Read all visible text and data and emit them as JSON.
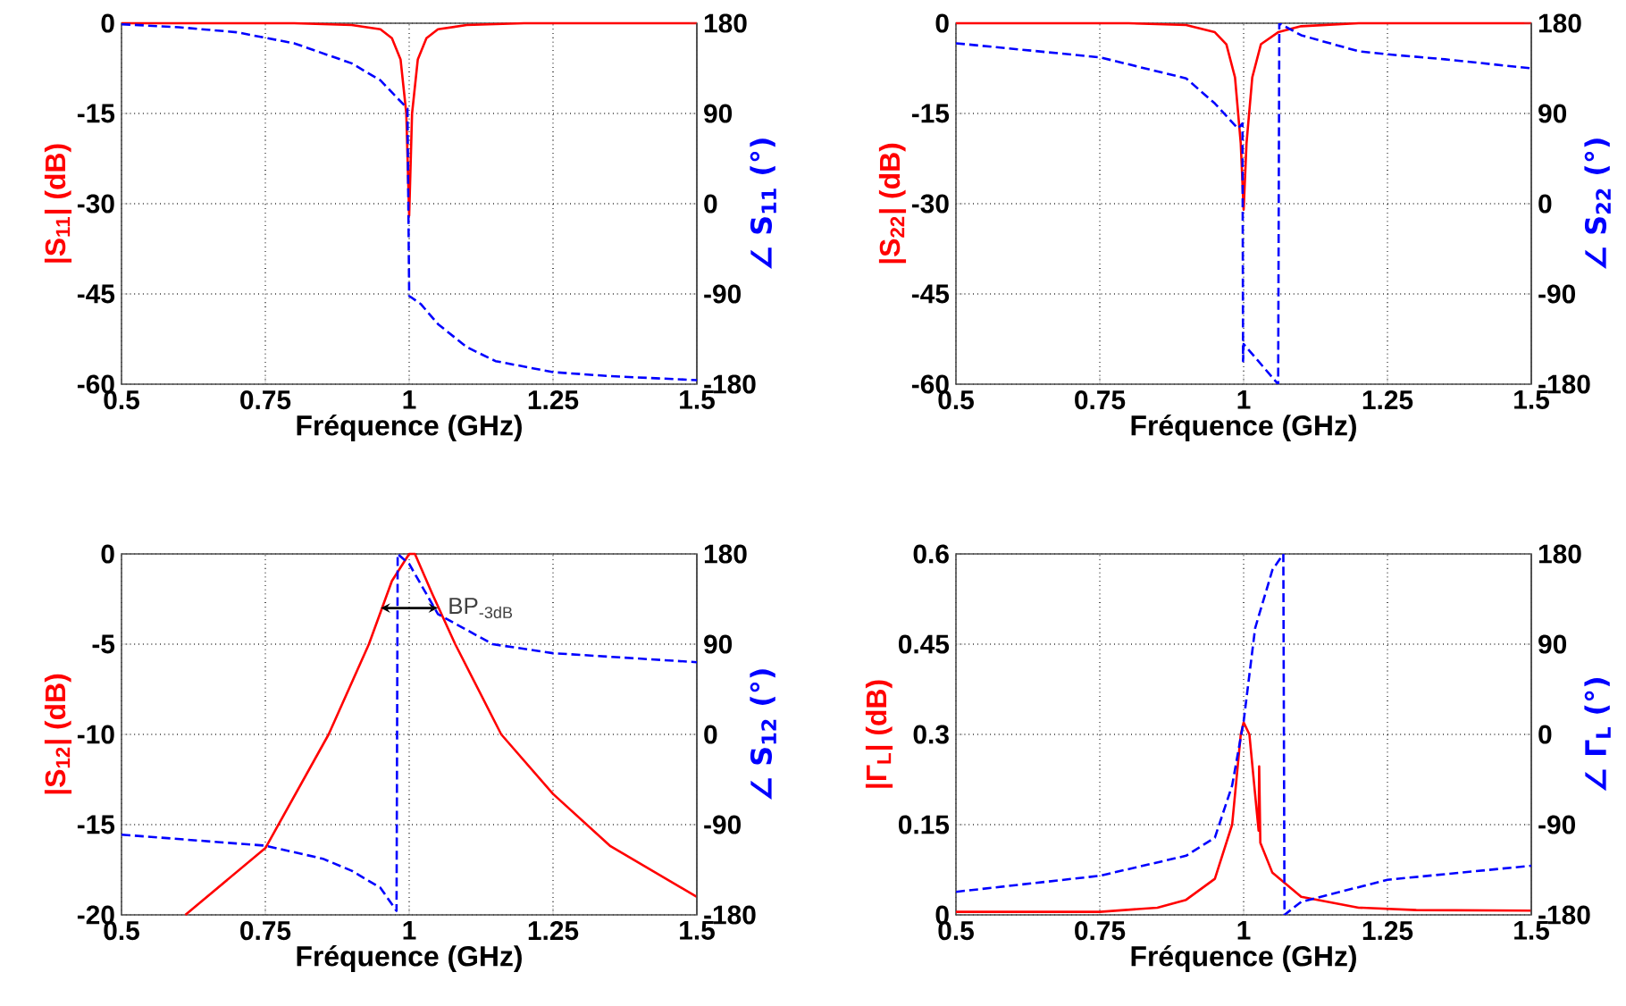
{
  "chart_data": [
    {
      "type": "line",
      "xlabel": "Fréquence (GHz)",
      "ylabel": "|S$_{11}$| (dB)",
      "y2label": "∠ S$_{11}$ (°)",
      "xlim": [
        0.5,
        1.5
      ],
      "xticks": [
        0.5,
        0.75,
        1,
        1.25,
        1.5
      ],
      "ylim": [
        -60,
        0
      ],
      "yticks": [
        -60,
        -45,
        -30,
        -15,
        0
      ],
      "y2lim": [
        -180,
        180
      ],
      "y2ticks": [
        -180,
        -90,
        0,
        90,
        180
      ],
      "grid": true,
      "series": [
        {
          "color": "#ff0000",
          "line_style": "solid",
          "x": [
            0.5,
            0.8,
            0.9,
            0.95,
            0.97,
            0.985,
            0.995,
            1.0,
            1.005,
            1.015,
            1.03,
            1.05,
            1.1,
            1.2,
            1.5
          ],
          "values": [
            0,
            0,
            -0.3,
            -1,
            -2.5,
            -6,
            -15,
            -32,
            -15,
            -6,
            -2.5,
            -1,
            -0.3,
            0,
            0
          ]
        },
        {
          "color": "#0000ff",
          "line_style": "dashed",
          "axis": "y2",
          "x": [
            0.5,
            0.6,
            0.7,
            0.8,
            0.9,
            0.95,
            0.98,
            0.997,
            1.0,
            1.02,
            1.05,
            1.1,
            1.15,
            1.25,
            1.35,
            1.5
          ],
          "values": [
            179,
            176,
            171,
            160,
            140,
            123,
            105,
            95,
            -92,
            -100,
            -120,
            -143,
            -157,
            -168,
            -172,
            -176
          ]
        }
      ]
    },
    {
      "type": "line",
      "xlabel": "Fréquence (GHz)",
      "ylabel": "|S$_{22}$| (dB)",
      "y2label": "∠ S$_{22}$ (°)",
      "xlim": [
        0.5,
        1.5
      ],
      "xticks": [
        0.5,
        0.75,
        1,
        1.25,
        1.5
      ],
      "ylim": [
        -60,
        0
      ],
      "yticks": [
        -60,
        -45,
        -30,
        -15,
        0
      ],
      "y2lim": [
        -180,
        180
      ],
      "y2ticks": [
        -180,
        -90,
        0,
        90,
        180
      ],
      "grid": true,
      "series": [
        {
          "color": "#ff0000",
          "line_style": "solid",
          "x": [
            0.5,
            0.8,
            0.9,
            0.95,
            0.97,
            0.985,
            0.995,
            1.0,
            1.005,
            1.015,
            1.03,
            1.06,
            1.1,
            1.2,
            1.5
          ],
          "values": [
            0,
            0,
            -0.3,
            -1.5,
            -3.5,
            -9,
            -20,
            -31,
            -20,
            -9,
            -3.5,
            -1.5,
            -0.5,
            0,
            0
          ]
        },
        {
          "color": "#0000ff",
          "line_style": "dashed",
          "axis": "y2",
          "x": [
            0.5,
            0.75,
            0.9,
            0.95,
            0.99,
            0.998,
            0.999,
            1.0,
            1.06,
            1.062,
            1.1,
            1.2,
            1.25,
            1.35,
            1.5
          ],
          "values": [
            160,
            146,
            125,
            100,
            75,
            80,
            -157,
            -140,
            -180,
            180,
            168,
            152,
            149,
            144,
            135
          ]
        }
      ]
    },
    {
      "type": "line",
      "xlabel": "Fréquence (GHz)",
      "ylabel": "|S$_{12}$| (dB)",
      "y2label": "∠ S$_{12}$ (°)",
      "xlim": [
        0.5,
        1.5
      ],
      "xticks": [
        0.5,
        0.75,
        1,
        1.25,
        1.5
      ],
      "ylim": [
        -20,
        0
      ],
      "yticks": [
        -20,
        -15,
        -10,
        -5,
        0
      ],
      "y2lim": [
        -180,
        180
      ],
      "y2ticks": [
        -180,
        -90,
        0,
        90,
        180
      ],
      "grid": true,
      "annotations": [
        {
          "text": "BP$_{-3dB}$",
          "x": 1.05,
          "y": -3
        }
      ],
      "series": [
        {
          "color": "#ff0000",
          "line_style": "solid",
          "x": [
            0.611,
            0.75,
            0.86,
            0.93,
            0.97,
            1.0,
            1.01,
            1.04,
            1.08,
            1.16,
            1.25,
            1.35,
            1.5
          ],
          "values": [
            -20,
            -16.3,
            -10,
            -5,
            -1.5,
            0,
            0,
            -2.2,
            -5,
            -10,
            -13.3,
            -16.2,
            -19
          ]
        },
        {
          "color": "#0000ff",
          "line_style": "dashed",
          "axis": "y2",
          "x": [
            0.5,
            0.75,
            0.85,
            0.9,
            0.95,
            0.978,
            0.98,
            1.0,
            1.05,
            1.145,
            1.25,
            1.5
          ],
          "values": [
            -100,
            -111,
            -124,
            -136,
            -153,
            -176,
            180,
            170,
            120,
            90,
            81,
            72
          ]
        }
      ]
    },
    {
      "type": "line",
      "xlabel": "Fréquence (GHz)",
      "ylabel": "|Γ$_{L}$| (dB)",
      "y2label": "∠ Γ$_{L}$ (°)",
      "xlim": [
        0.5,
        1.5
      ],
      "xticks": [
        0.5,
        0.75,
        1,
        1.25,
        1.5
      ],
      "ylim": [
        0,
        0.6
      ],
      "yticks": [
        0,
        0.15,
        0.3,
        0.45,
        0.6
      ],
      "y2lim": [
        -180,
        180
      ],
      "y2ticks": [
        -180,
        -90,
        0,
        90,
        180
      ],
      "grid": true,
      "series": [
        {
          "color": "#ff0000",
          "line_style": "solid",
          "x": [
            0.5,
            0.75,
            0.85,
            0.9,
            0.95,
            0.98,
            0.995,
            1.0,
            1.01,
            1.02,
            1.026,
            1.027,
            1.029,
            1.05,
            1.1,
            1.2,
            1.3,
            1.5
          ],
          "values": [
            0.005,
            0.005,
            0.012,
            0.025,
            0.06,
            0.15,
            0.3,
            0.32,
            0.3,
            0.2,
            0.14,
            0.247,
            0.12,
            0.07,
            0.03,
            0.012,
            0.008,
            0.007
          ]
        },
        {
          "color": "#0000ff",
          "line_style": "dashed",
          "axis": "y2",
          "x": [
            0.5,
            0.75,
            0.9,
            0.95,
            0.98,
            1.0,
            1.02,
            1.05,
            1.069,
            1.071,
            1.1,
            1.25,
            1.5
          ],
          "values": [
            -157,
            -141,
            -121,
            -103,
            -51,
            13,
            106,
            164,
            180,
            -180,
            -167,
            -145,
            -131
          ]
        }
      ]
    }
  ]
}
